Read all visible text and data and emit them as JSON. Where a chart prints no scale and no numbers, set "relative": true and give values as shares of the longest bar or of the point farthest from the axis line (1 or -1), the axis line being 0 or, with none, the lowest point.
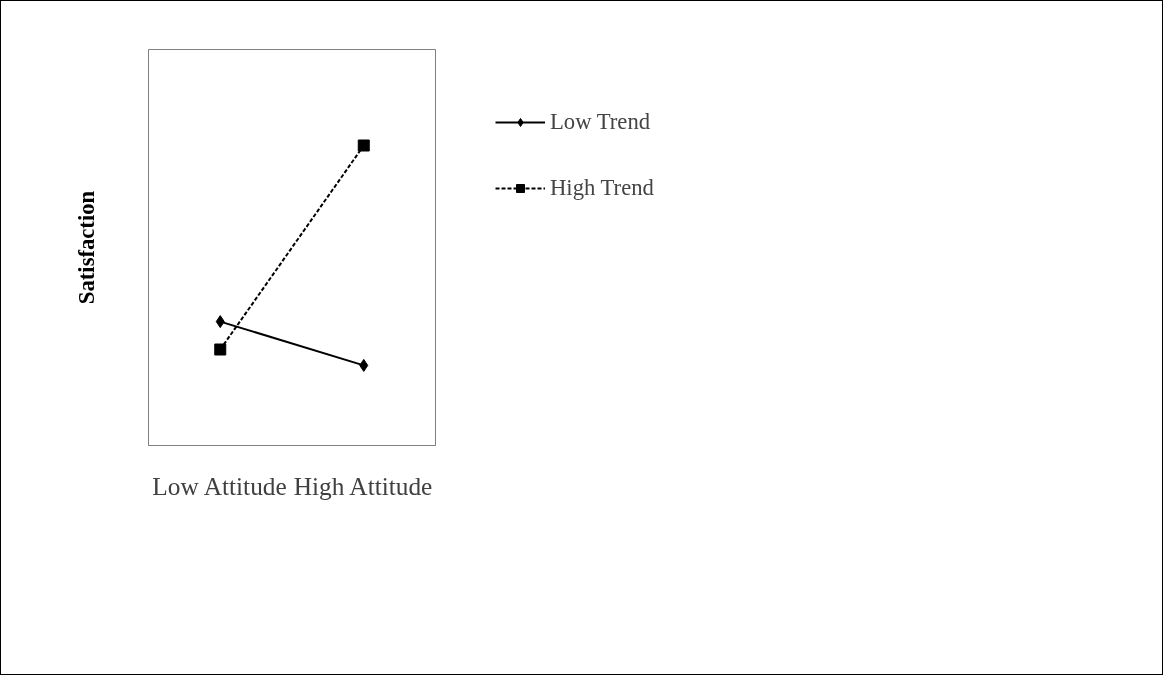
{
  "chart_data": {
    "type": "line",
    "relative": true,
    "ylabel": "Satisfaction",
    "categories": [
      "Low Attitude",
      "High Attitude"
    ],
    "series": [
      {
        "name": "Low Trend",
        "color": "#000000",
        "values": [
          0.413,
          0.267
        ],
        "marker": "diamond",
        "line_style": "solid"
      },
      {
        "name": "High Trend",
        "color": "#000000",
        "values": [
          0.32,
          1.0
        ],
        "marker": "square",
        "line_style": "dashed"
      }
    ],
    "legend": "right",
    "grid": false
  }
}
